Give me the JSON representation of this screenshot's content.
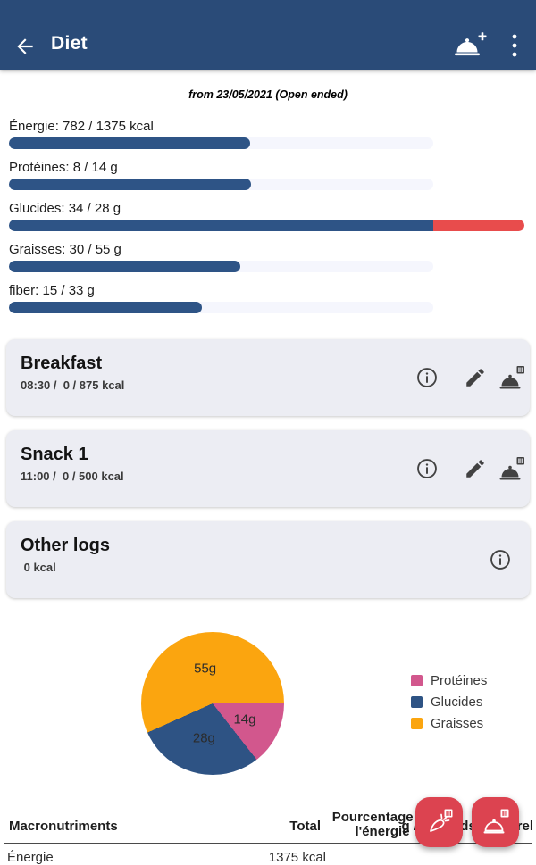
{
  "appbar": {
    "title": "Diet",
    "back_icon": "arrow-back",
    "add_meal_icon": "dish-plus",
    "menu_icon": "kebab-menu"
  },
  "subtitle": "from 23/05/2021 (Open ended)",
  "nutrients": [
    {
      "label": "Énergie: 782 / 1375 kcal",
      "value": 782,
      "max": 1375,
      "unit": "kcal"
    },
    {
      "label": "Protéines: 8 / 14 g",
      "value": 8,
      "max": 14,
      "unit": "g"
    },
    {
      "label": "Glucides: 34 / 28 g",
      "value": 34,
      "max": 28,
      "unit": "g"
    },
    {
      "label": "Graisses: 30 / 55 g",
      "value": 30,
      "max": 55,
      "unit": "g"
    },
    {
      "label": "fiber: 15 / 33 g",
      "value": 15,
      "max": 33,
      "unit": "g"
    }
  ],
  "meals": [
    {
      "title": "Breakfast",
      "details": "08:30 /  0 / 875 kcal"
    },
    {
      "title": "Snack 1",
      "details": "11:00 /  0 / 500 kcal"
    },
    {
      "title": "Other logs",
      "details": " 0 kcal"
    }
  ],
  "chart_data": {
    "type": "pie",
    "title": "",
    "unit": "g",
    "start_angle_deg_from_east": 0,
    "direction": "clockwise",
    "legend_position": "right",
    "slices": [
      {
        "label": "Protéines",
        "value": 14,
        "text": "14g",
        "color": "#D2578D"
      },
      {
        "label": "Glucides",
        "value": 28,
        "text": "28g",
        "color": "#2E5384"
      },
      {
        "label": "Graisses",
        "value": 55,
        "text": "55g",
        "color": "#FBA50F"
      }
    ]
  },
  "table": {
    "headers": {
      "col1": "Macronutriments",
      "col2": "Total",
      "col3_line1": "Pourcentage de",
      "col3_line2": "l'énergie",
      "col4": "g / kg poids corporel"
    },
    "rows": [
      {
        "name": "Énergie",
        "total": "1375 kcal"
      }
    ]
  },
  "colors": {
    "appbar_bg": "#2A4B78",
    "bar_fill": "#2E5486",
    "bar_overflow": "#E84C4C",
    "bar_track": "#F5F6FD",
    "card_bg": "#ECEDF3",
    "fab_bg": "#DC4350",
    "pie_proteines": "#D2578D",
    "pie_glucides": "#2E5384",
    "pie_graisses": "#FBA50F"
  }
}
